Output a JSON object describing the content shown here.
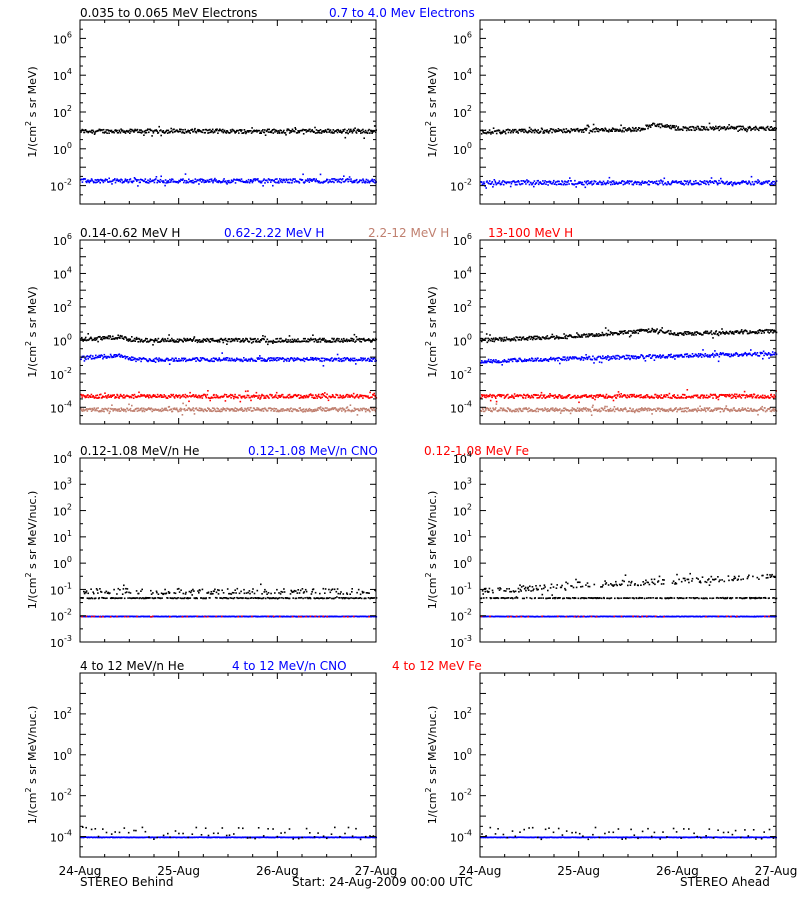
{
  "footer": {
    "left": "STEREO Behind",
    "center": "Start: 24-Aug-2009 00:00 UTC",
    "right": "STEREO Ahead"
  },
  "colors": {
    "black": "#000000",
    "blue": "#0000ff",
    "tan": "#c08070",
    "red": "#ff0000"
  },
  "chart_data": [
    {
      "row": 1,
      "type": "scatter",
      "legend": [
        {
          "text": "0.035 to 0.065 MeV Electrons",
          "color": "#000000"
        },
        {
          "text": "0.7 to 4.0 Mev Electrons",
          "color": "#0000ff"
        }
      ],
      "ylabel_html": "1/(cm<tspan dy='-5' font-size='8'>2</tspan><tspan dy='5'> s sr MeV)</tspan>",
      "ylog": [
        -3,
        7
      ],
      "yticks": [
        {
          "exp": -2,
          "label": "10",
          "sup": "-2"
        },
        {
          "exp": 0,
          "label": "10",
          "sup": "0"
        },
        {
          "exp": 2,
          "label": "10",
          "sup": "2"
        },
        {
          "exp": 4,
          "label": "10",
          "sup": "4"
        },
        {
          "exp": 6,
          "label": "10",
          "sup": "6"
        }
      ],
      "xlim": [
        0,
        3
      ],
      "xticks": [
        "24-Aug",
        "25-Aug",
        "26-Aug",
        "27-Aug"
      ],
      "panels": [
        {
          "name": "STEREO Behind",
          "series": [
            {
              "color": "#000000",
              "profile": [
                [
                  0,
                  1.0
                ],
                [
                  3,
                  1.0
                ]
              ]
            },
            {
              "color": "#0000ff",
              "profile": [
                [
                  0,
                  -1.7
                ],
                [
                  3,
                  -1.7
                ]
              ]
            }
          ]
        },
        {
          "name": "STEREO Ahead",
          "series": [
            {
              "color": "#000000",
              "profile": [
                [
                  0,
                  0.95
                ],
                [
                  1.6,
                  1.1
                ],
                [
                  1.75,
                  1.35
                ],
                [
                  2.0,
                  1.15
                ],
                [
                  3,
                  1.15
                ]
              ]
            },
            {
              "color": "#0000ff",
              "profile": [
                [
                  0,
                  -1.8
                ],
                [
                  3,
                  -1.8
                ]
              ]
            }
          ]
        }
      ]
    },
    {
      "row": 2,
      "type": "scatter",
      "legend": [
        {
          "text": "0.14-0.62 MeV H",
          "color": "#000000"
        },
        {
          "text": "0.62-2.22 MeV H",
          "color": "#0000ff"
        },
        {
          "text": "2.2-12 MeV H",
          "color": "#c08070"
        },
        {
          "text": "13-100 MeV H",
          "color": "#ff0000"
        }
      ],
      "ylabel_html": "1/(cm<tspan dy='-5' font-size='8'>2</tspan><tspan dy='5'> s sr MeV)</tspan>",
      "ylog": [
        -5,
        6
      ],
      "yticks": [
        {
          "exp": -4,
          "label": "10",
          "sup": "-4"
        },
        {
          "exp": -2,
          "label": "10",
          "sup": "-2"
        },
        {
          "exp": 0,
          "label": "10",
          "sup": "0"
        },
        {
          "exp": 2,
          "label": "10",
          "sup": "2"
        },
        {
          "exp": 4,
          "label": "10",
          "sup": "4"
        },
        {
          "exp": 6,
          "label": "10",
          "sup": "6"
        }
      ],
      "xlim": [
        0,
        3
      ],
      "xticks": [
        "24-Aug",
        "25-Aug",
        "26-Aug",
        "27-Aug"
      ],
      "panels": [
        {
          "name": "STEREO Behind",
          "series": [
            {
              "color": "#000000",
              "profile": [
                [
                  0,
                  0.1
                ],
                [
                  0.4,
                  0.25
                ],
                [
                  0.5,
                  0.05
                ],
                [
                  3,
                  0.05
                ]
              ]
            },
            {
              "color": "#0000ff",
              "profile": [
                [
                  0,
                  -1.0
                ],
                [
                  0.4,
                  -0.85
                ],
                [
                  0.55,
                  -1.1
                ],
                [
                  3,
                  -1.1
                ]
              ]
            },
            {
              "color": "#ff0000",
              "profile": [
                [
                  0,
                  -3.3
                ],
                [
                  3,
                  -3.3
                ]
              ]
            },
            {
              "color": "#c08070",
              "profile": [
                [
                  0,
                  -4.1
                ],
                [
                  3,
                  -4.1
                ]
              ]
            }
          ]
        },
        {
          "name": "STEREO Ahead",
          "series": [
            {
              "color": "#000000",
              "profile": [
                [
                  0,
                  0.05
                ],
                [
                  1.0,
                  0.3
                ],
                [
                  1.75,
                  0.65
                ],
                [
                  2.0,
                  0.45
                ],
                [
                  3,
                  0.6
                ]
              ]
            },
            {
              "color": "#0000ff",
              "profile": [
                [
                  0,
                  -1.2
                ],
                [
                  1.5,
                  -0.95
                ],
                [
                  3,
                  -0.75
                ]
              ]
            },
            {
              "color": "#ff0000",
              "profile": [
                [
                  0,
                  -3.3
                ],
                [
                  3,
                  -3.3
                ]
              ]
            },
            {
              "color": "#c08070",
              "profile": [
                [
                  0,
                  -4.1
                ],
                [
                  3,
                  -4.1
                ]
              ]
            }
          ]
        }
      ]
    },
    {
      "row": 3,
      "type": "scatter",
      "legend": [
        {
          "text": "0.12-1.08 MeV/n He",
          "color": "#000000"
        },
        {
          "text": "0.12-1.08 MeV/n CNO",
          "color": "#0000ff"
        },
        {
          "text": "0.12-1.08 MeV Fe",
          "color": "#ff0000"
        }
      ],
      "ylabel_html": "1/(cm<tspan dy='-5' font-size='8'>2</tspan><tspan dy='5'> s sr MeV/nuc.)</tspan>",
      "ylog": [
        -3,
        4
      ],
      "yticks": [
        {
          "exp": -3,
          "label": "10",
          "sup": "-3"
        },
        {
          "exp": -2,
          "label": "10",
          "sup": "-2"
        },
        {
          "exp": -1,
          "label": "10",
          "sup": "-1"
        },
        {
          "exp": 0,
          "label": "10",
          "sup": "0"
        },
        {
          "exp": 1,
          "label": "10",
          "sup": "1"
        },
        {
          "exp": 2,
          "label": "10",
          "sup": "2"
        },
        {
          "exp": 3,
          "label": "10",
          "sup": "3"
        },
        {
          "exp": 4,
          "label": "10",
          "sup": "4"
        }
      ],
      "xlim": [
        0,
        3
      ],
      "xticks": [
        "24-Aug",
        "25-Aug",
        "26-Aug",
        "27-Aug"
      ],
      "panels": [
        {
          "name": "STEREO Behind",
          "series": [
            {
              "color": "#000000",
              "profile": [
                [
                  0,
                  -1.05
                ],
                [
                  3,
                  -1.05
                ]
              ],
              "baseline": -1.3
            },
            {
              "color": "#0000ff",
              "profile": [
                [
                  0,
                  -2.0
                ],
                [
                  3,
                  -2.0
                ]
              ],
              "flat": true
            },
            {
              "color": "#ff0000",
              "profile": [
                [
                  0,
                  -2.0
                ],
                [
                  3,
                  -2.0
                ]
              ],
              "flat": true,
              "sparse": true
            }
          ]
        },
        {
          "name": "STEREO Ahead",
          "series": [
            {
              "color": "#000000",
              "profile": [
                [
                  0,
                  -1.05
                ],
                [
                  1.0,
                  -0.8
                ],
                [
                  2.0,
                  -0.65
                ],
                [
                  3,
                  -0.45
                ]
              ],
              "baseline": -1.3
            },
            {
              "color": "#0000ff",
              "profile": [
                [
                  0,
                  -2.0
                ],
                [
                  3,
                  -2.0
                ]
              ],
              "flat": true
            },
            {
              "color": "#ff0000",
              "profile": [
                [
                  0,
                  -2.0
                ],
                [
                  3,
                  -2.0
                ]
              ],
              "flat": true,
              "sparse": true
            }
          ]
        }
      ]
    },
    {
      "row": 4,
      "type": "scatter",
      "legend": [
        {
          "text": "4 to 12 MeV/n He",
          "color": "#000000"
        },
        {
          "text": "4 to 12 MeV/n CNO",
          "color": "#0000ff"
        },
        {
          "text": "4 to 12 MeV Fe",
          "color": "#ff0000"
        }
      ],
      "ylabel_html": "1/(cm<tspan dy='-5' font-size='8'>2</tspan><tspan dy='5'> s sr MeV/nuc.)</tspan>",
      "ylog": [
        -5,
        4
      ],
      "yticks": [
        {
          "exp": -4,
          "label": "10",
          "sup": "-4"
        },
        {
          "exp": -2,
          "label": "10",
          "sup": "-2"
        },
        {
          "exp": 0,
          "label": "10",
          "sup": "0"
        },
        {
          "exp": 2,
          "label": "10",
          "sup": "2"
        }
      ],
      "xlim": [
        0,
        3
      ],
      "xticks": [
        "24-Aug",
        "25-Aug",
        "26-Aug",
        "27-Aug"
      ],
      "panels": [
        {
          "name": "STEREO Behind",
          "series": [
            {
              "color": "#0000ff",
              "profile": [
                [
                  0,
                  -4.0
                ],
                [
                  3,
                  -4.0
                ]
              ],
              "flat": true
            },
            {
              "color": "#000000",
              "profile": [
                [
                  0,
                  -3.6
                ],
                [
                  3,
                  -3.6
                ]
              ],
              "sparse": true
            }
          ]
        },
        {
          "name": "STEREO Ahead",
          "series": [
            {
              "color": "#0000ff",
              "profile": [
                [
                  0,
                  -4.0
                ],
                [
                  3,
                  -4.0
                ]
              ],
              "flat": true
            },
            {
              "color": "#000000",
              "profile": [
                [
                  0,
                  -3.6
                ],
                [
                  3,
                  -3.6
                ]
              ],
              "sparse": true
            }
          ]
        }
      ]
    }
  ]
}
